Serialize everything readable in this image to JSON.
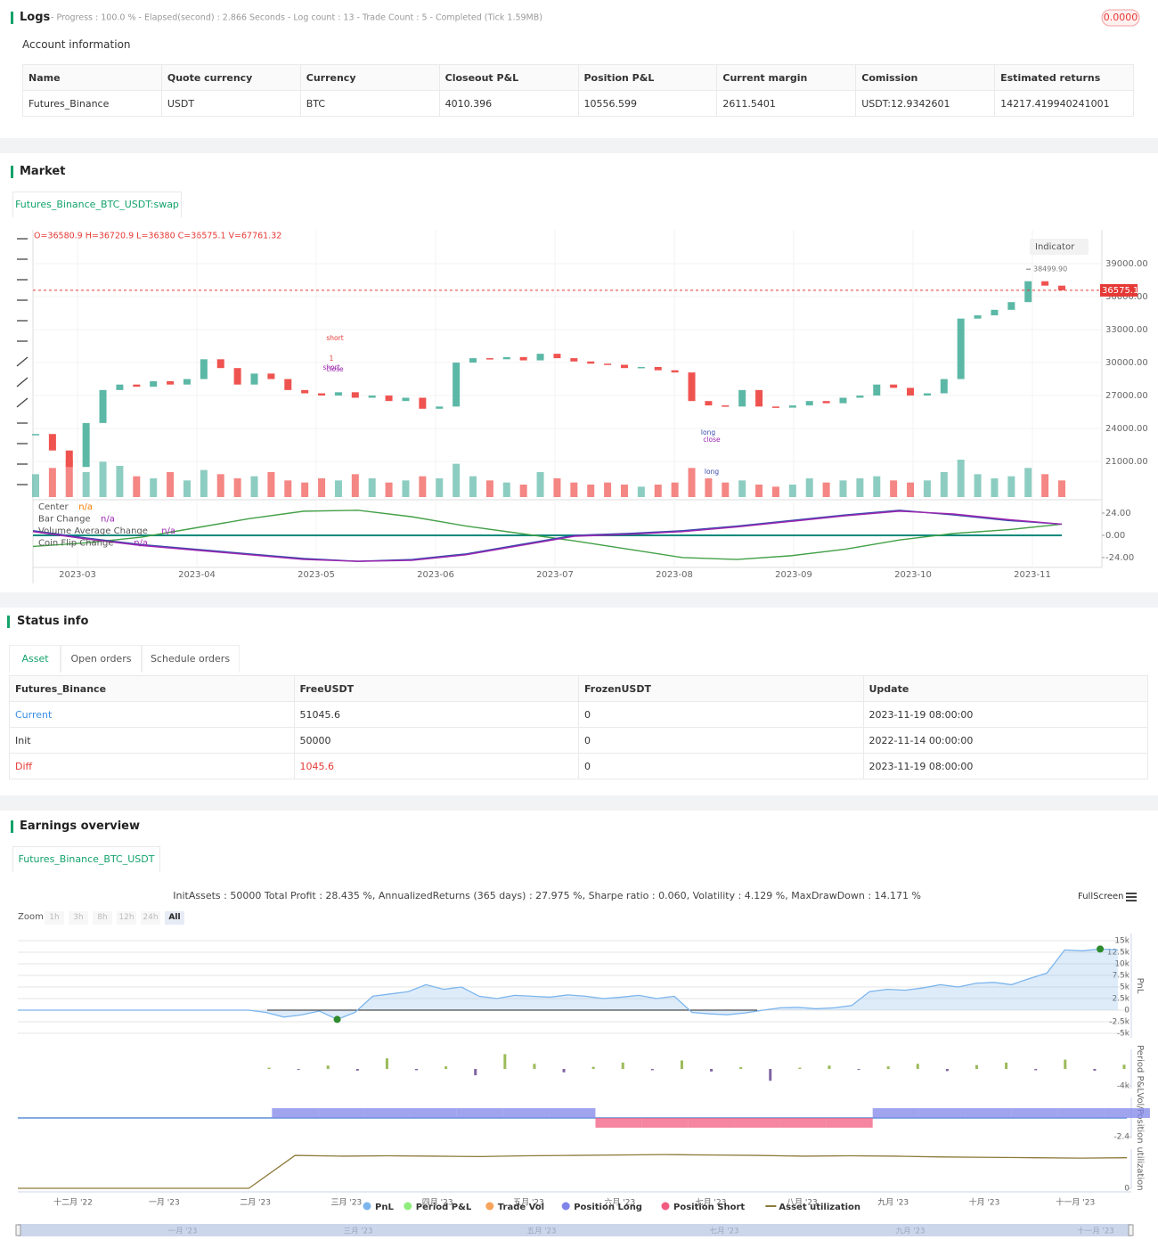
{
  "logs": {
    "title": "Logs",
    "summary": "- Progress : 100.0 % - Elapsed(second) : 2.866  Seconds - Log count : 13 - Trade Count : 5 - Completed (Tick 1.59MB)",
    "badge": "0.0000"
  },
  "account": {
    "title": "Account information",
    "columns": [
      "Name",
      "Quote currency",
      "Currency",
      "Closeout P&L",
      "Position P&L",
      "Current margin",
      "Comission",
      "Estimated returns"
    ],
    "rows": [
      [
        "Futures_Binance",
        "USDT",
        "BTC",
        "4010.396",
        "10556.599",
        "2611.5401",
        "USDT:12.9342601",
        "14217.419940241001"
      ]
    ]
  },
  "market": {
    "title": "Market",
    "tab": "Futures_Binance_BTC_USDT:swap",
    "chart_data": [
      {
        "type": "candlestick",
        "ohlc": "O=36580.9 H=36720.9 L=36380 C=36575.1 V=67761.32",
        "indicator_button": "Indicator",
        "xtick_labels": [
          "2023-03",
          "2023-04",
          "2023-05",
          "2023-06",
          "2023-07",
          "2023-08",
          "2023-09",
          "2023-10",
          "2023-11"
        ],
        "values": [
          23500,
          22000,
          20500,
          24500,
          27500,
          28000,
          27800,
          28300,
          28000,
          28500,
          30300,
          29500,
          28000,
          29000,
          28500,
          27500,
          27200,
          27000,
          27300,
          26800,
          27000,
          26500,
          26800,
          25800,
          26000,
          30000,
          30400,
          30300,
          30500,
          30200,
          30800,
          30400,
          30100,
          29900,
          29800,
          29500,
          29600,
          29300,
          29100,
          26500,
          26100,
          26000,
          27500,
          26000,
          25900,
          26100,
          26500,
          26300,
          26800,
          27000,
          28000,
          27700,
          27000,
          27200,
          28500,
          34000,
          34300,
          34800,
          35500,
          37400,
          37000,
          36575.1
        ],
        "volume": [
          55,
          70,
          90,
          60,
          85,
          75,
          50,
          45,
          60,
          40,
          65,
          55,
          45,
          50,
          60,
          40,
          35,
          45,
          40,
          55,
          45,
          35,
          40,
          50,
          45,
          80,
          50,
          40,
          35,
          30,
          60,
          45,
          35,
          30,
          35,
          30,
          25,
          30,
          35,
          70,
          45,
          35,
          40,
          30,
          25,
          30,
          45,
          35,
          40,
          45,
          50,
          40,
          35,
          40,
          60,
          90,
          55,
          45,
          50,
          70,
          55,
          40
        ],
        "up_color": "#5cb8a6",
        "down_color": "#ef5350",
        "ylim": [
          17600,
          42080
        ],
        "yticks": [
          {
            "value": 21000,
            "label": "21000.00"
          },
          {
            "value": 24000,
            "label": "24000.00"
          },
          {
            "value": 27000,
            "label": "27000.00"
          },
          {
            "value": 30000,
            "label": "30000.00"
          },
          {
            "value": 33000,
            "label": "33000.00"
          },
          {
            "value": 36000,
            "label": "36000.00"
          },
          {
            "value": 39000,
            "label": "39000.00"
          }
        ],
        "last_price": {
          "value": 36575.1,
          "label": "36575.10"
        },
        "high": {
          "value": 38499.9,
          "label": "38499.90"
        },
        "annotations": [
          "short",
          "1",
          "short",
          "close",
          "long",
          "close",
          "long"
        ]
      },
      {
        "type": "line",
        "ylim": [
          -34.6,
          37.4
        ],
        "yticks": [
          {
            "value": 24,
            "label": "24.00"
          },
          {
            "value": 0,
            "label": "0.00"
          },
          {
            "value": -24,
            "label": "-24.00"
          }
        ],
        "series": [
          {
            "name": "Center",
            "status": "n/a",
            "color": "#00897b",
            "values": [
              0,
              0,
              0,
              0,
              0,
              0,
              0,
              0,
              0,
              0,
              0,
              0,
              0,
              0,
              0,
              0,
              0,
              0,
              0,
              0
            ]
          },
          {
            "name": "Bar Change",
            "status": "n/a",
            "color": "#43a047",
            "values": [
              -12,
              -8,
              -2,
              8,
              18,
              26,
              27,
              20,
              10,
              2,
              -6,
              -15,
              -24,
              -26,
              -22,
              -15,
              -5,
              2,
              6,
              12
            ]
          },
          {
            "name": "Volume Average Change",
            "status": "n/a",
            "color": "#3949ab",
            "values": [
              5,
              -3,
              -10,
              -15,
              -20,
              -25,
              -28,
              -26,
              -20,
              -10,
              0,
              2,
              5,
              10,
              16,
              22,
              27,
              22,
              16,
              12
            ]
          },
          {
            "name": "Coin Flip Change",
            "status": "n/a",
            "color": "#9c27b0",
            "values": [
              4,
              -4,
              -11,
              -16,
              -21,
              -26,
              -28,
              -27,
              -21,
              -11,
              -1,
              1,
              4,
              9,
              15,
              21,
              26,
              23,
              17,
              12
            ]
          }
        ]
      }
    ]
  },
  "status": {
    "title": "Status info",
    "tabs": [
      "Asset",
      "Open orders",
      "Schedule orders"
    ],
    "columns": [
      "Futures_Binance",
      "FreeUSDT",
      "FrozenUSDT",
      "Update"
    ],
    "rows": [
      [
        "Current",
        "51045.6",
        "0",
        "2023-11-19 08:00:00"
      ],
      [
        "Init",
        "50000",
        "0",
        "2022-11-14 00:00:00"
      ],
      [
        "Diff",
        "1045.6",
        "0",
        "2023-11-19 08:00:00"
      ]
    ]
  },
  "earnings": {
    "title": "Earnings overview",
    "tab": "Futures_Binance_BTC_USDT",
    "stats": "InitAssets : 50000 Total Profit : 28.435 %, AnnualizedReturns (365 days) : 27.975 %, Sharpe ratio : 0.060, Volatility : 4.129 %, MaxDrawDown : 14.171 %",
    "zoom_label": "Zoom",
    "zoom_buttons": [
      "1h",
      "3h",
      "8h",
      "12h",
      "24h",
      "All"
    ],
    "fullscreen": "FullScreen",
    "chart_data": {
      "type": "panels",
      "xtick_labels": [
        "十二月 '22",
        "一月 '23",
        "二月 '23",
        "三月 '23",
        "四月 '23",
        "五月 '23",
        "六月 '23",
        "七月 '23",
        "八月 '23",
        "九月 '23",
        "十月 '23",
        "十一月 '23"
      ],
      "navigator_labels": [
        "一月 '23",
        "三月 '23",
        "五月 '23",
        "七月 '23",
        "九月 '23",
        "十一月 '23"
      ],
      "legend": [
        {
          "name": "PnL",
          "color": "#7cb5ec"
        },
        {
          "name": "Period P&L",
          "color": "#90ed7d"
        },
        {
          "name": "Trade Vol",
          "color": "#f7a35c"
        },
        {
          "name": "Position Long",
          "color": "#8085e9"
        },
        {
          "name": "Position Short",
          "color": "#f15c80"
        },
        {
          "name": "Asset utilization",
          "color": "#8d7a3a"
        }
      ],
      "panels": [
        {
          "kind": "area",
          "axis_title": "PnL",
          "color": "#7cb5ec",
          "ylim": [
            -5960,
            16540
          ],
          "yticks": [
            {
              "value": 15000,
              "label": "15k"
            },
            {
              "value": 12500,
              "label": "12.5k"
            },
            {
              "value": 10000,
              "label": "10k"
            },
            {
              "value": 7500,
              "label": "7.5k"
            },
            {
              "value": 5000,
              "label": "5k"
            },
            {
              "value": 2500,
              "label": "2.5k"
            },
            0,
            {
              "value": -2500,
              "label": "-2.5k"
            },
            {
              "value": -5000,
              "label": "-5k"
            }
          ],
          "values": [
            0,
            0,
            0,
            0,
            0,
            0,
            0,
            0,
            0,
            0,
            0,
            0,
            0,
            0,
            -500,
            -1500,
            -1000,
            -200,
            -2000,
            -500,
            3000,
            3500,
            4000,
            5500,
            4500,
            5000,
            3000,
            2500,
            3200,
            3000,
            2800,
            3300,
            3000,
            2500,
            2800,
            3200,
            2500,
            3000,
            -500,
            -800,
            -1000,
            -600,
            0,
            500,
            600,
            300,
            500,
            1000,
            4000,
            4500,
            4300,
            4800,
            5500,
            5000,
            5800,
            6000,
            5500,
            6800,
            8000,
            13000,
            12800,
            13200,
            13000
          ]
        },
        {
          "kind": "bar",
          "axis_title": "Period P&L",
          "color": "#9bbb59",
          "neg_color": "#8064a2",
          "ylim": [
            -4630,
            4630
          ],
          "yticks": [
            {
              "value": -4000,
              "label": "-4k"
            }
          ],
          "values": [
            300,
            -200,
            800,
            -400,
            2500,
            -300,
            600,
            -1500,
            3500,
            1200,
            -800,
            500,
            1500,
            -300,
            2000,
            -600,
            400,
            -2800,
            300,
            800,
            -200,
            600,
            1200,
            -500,
            900,
            1500,
            -300,
            2200,
            -400,
            1000
          ]
        },
        {
          "kind": "position",
          "axis_title": "Vol/Position",
          "color": "#8085e9",
          "neg_color": "#f15c80",
          "ylim": [
            -2.63,
            2.63
          ],
          "yticks": [
            -2.4
          ],
          "values": [
            0,
            0,
            0,
            0,
            0,
            0,
            1.25,
            1.25,
            1.25,
            1.25,
            1.25,
            1.25,
            1.25,
            -1.25,
            -1.25,
            -1.25,
            -1.25,
            -1.25,
            -1.25,
            1.25,
            1.25,
            1.25,
            1.25,
            1.25,
            1.25
          ]
        },
        {
          "kind": "line",
          "axis_title": "utilization",
          "color": "#8d7a3a",
          "ylim": [
            0,
            1
          ],
          "yticks": [
            0
          ],
          "values": [
            0,
            0,
            0,
            0,
            0,
            0,
            0.84,
            0.82,
            0.83,
            0.82,
            0.81,
            0.83,
            0.84,
            0.85,
            0.86,
            0.85,
            0.84,
            0.82,
            0.83,
            0.82,
            0.8,
            0.79,
            0.78,
            0.77,
            0.78
          ]
        }
      ]
    }
  }
}
